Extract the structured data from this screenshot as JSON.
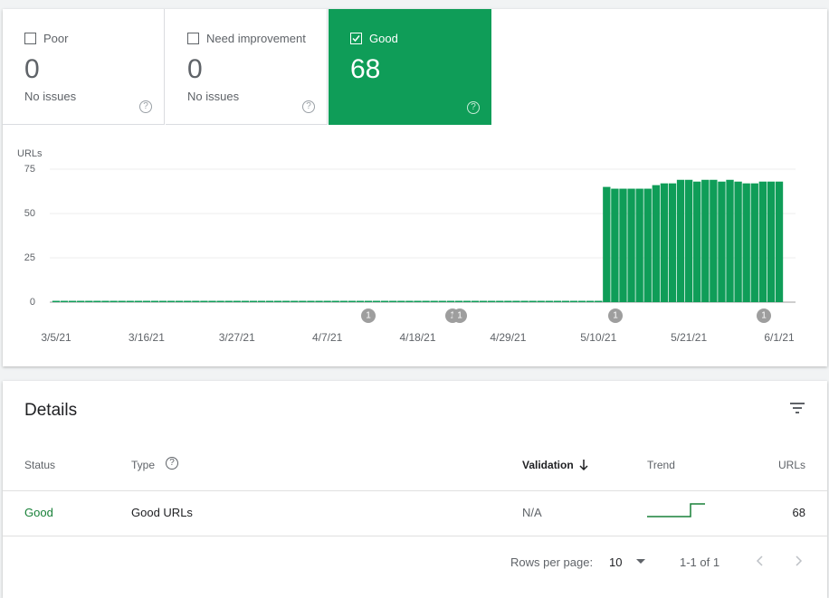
{
  "cards": [
    {
      "label": "Poor",
      "value": 0,
      "sub": "No issues"
    },
    {
      "label": "Need improvement",
      "value": 0,
      "sub": "No issues"
    },
    {
      "label": "Good",
      "value": 68
    }
  ],
  "chart_data": {
    "type": "bar",
    "y_label": "URLs",
    "color": "#0f9d58",
    "ylim": [
      0,
      75
    ],
    "yticks": [
      0,
      25,
      50,
      75
    ],
    "grid": true,
    "categories": [
      "3/5/21",
      null,
      null,
      null,
      null,
      null,
      null,
      null,
      null,
      null,
      null,
      "3/16/21",
      null,
      null,
      null,
      null,
      null,
      null,
      null,
      null,
      null,
      null,
      "3/27/21",
      null,
      null,
      null,
      null,
      null,
      null,
      null,
      null,
      null,
      null,
      "4/7/21",
      null,
      null,
      null,
      null,
      null,
      null,
      null,
      null,
      null,
      null,
      "4/18/21",
      null,
      null,
      null,
      null,
      null,
      null,
      null,
      null,
      null,
      null,
      "4/29/21",
      null,
      null,
      null,
      null,
      null,
      null,
      null,
      null,
      null,
      null,
      "5/10/21",
      null,
      null,
      null,
      null,
      null,
      null,
      null,
      null,
      null,
      null,
      "5/21/21",
      null,
      null,
      null,
      null,
      null,
      null,
      null,
      null,
      null,
      null,
      "6/1/21"
    ],
    "values": [
      0,
      0,
      0,
      0,
      0,
      0,
      0,
      0,
      0,
      0,
      0,
      0,
      0,
      0,
      0,
      0,
      0,
      0,
      0,
      0,
      0,
      0,
      0,
      0,
      0,
      0,
      0,
      0,
      0,
      0,
      0,
      0,
      0,
      0,
      0,
      0,
      0,
      0,
      0,
      0,
      0,
      0,
      0,
      0,
      0,
      0,
      0,
      0,
      0,
      0,
      0,
      0,
      0,
      0,
      0,
      0,
      0,
      0,
      0,
      0,
      0,
      0,
      0,
      0,
      0,
      0,
      0,
      65,
      64,
      64,
      64,
      64,
      64,
      66,
      67,
      67,
      69,
      69,
      68,
      69,
      69,
      68,
      69,
      68,
      67,
      67,
      68,
      68,
      68
    ],
    "annotations": [
      "1",
      "1",
      "1",
      "1",
      "1"
    ]
  },
  "details": {
    "title": "Details",
    "headers": [
      "Status",
      "Type",
      "Validation",
      "Trend",
      "URLs"
    ],
    "rows": [
      [
        "Good",
        "Good URLs",
        "N/A",
        68
      ]
    ],
    "footer": {
      "rows_per_page_label": "Rows per page:",
      "rows_per_page": 10,
      "range": "1-1 of 1"
    }
  }
}
